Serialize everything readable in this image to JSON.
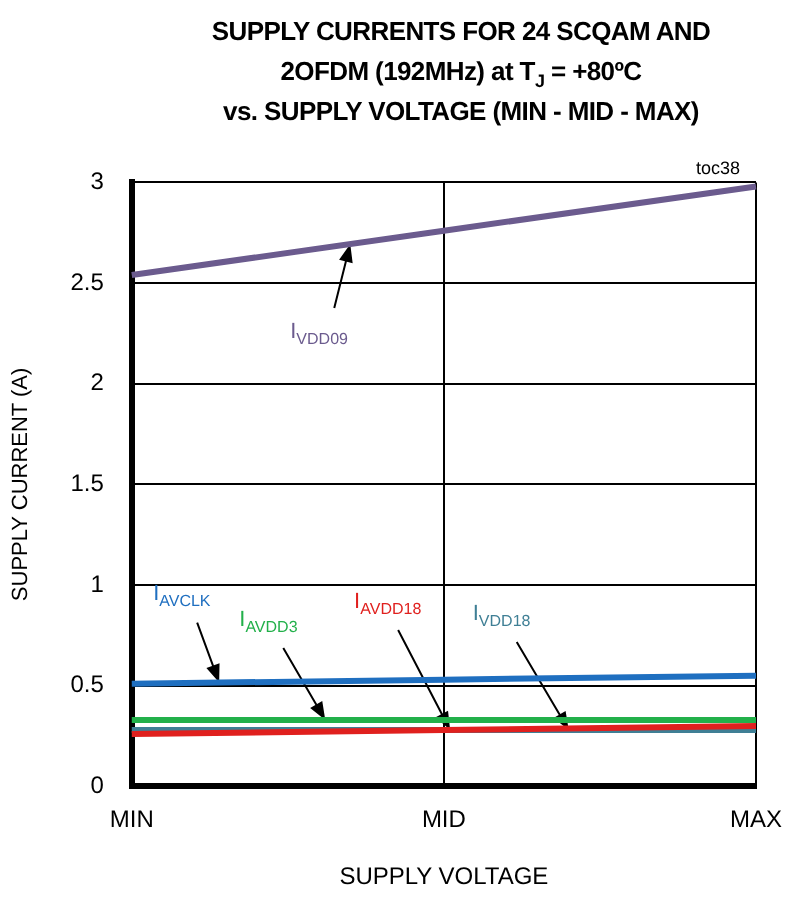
{
  "chart_data": {
    "type": "line",
    "title": "SUPPLY CURRENTS FOR 24 SCQAM AND\n2OFDM (192MHz) at T$_{J}$ = +80ºC\nvs. SUPPLY VOLTAGE (MIN - MID - MAX)",
    "xlabel": "SUPPLY VOLTAGE",
    "ylabel": "SUPPLY CURRENT (A)",
    "categories": [
      "MIN",
      "MID",
      "MAX"
    ],
    "ylim": [
      0,
      3
    ],
    "yticks": [
      0,
      0.5,
      1,
      1.5,
      2,
      2.5,
      3
    ],
    "grid": true,
    "legend": false,
    "marker": "none",
    "annotations": [
      "toc38"
    ],
    "series": [
      {
        "name": "I$_{VDD09}$",
        "color": "#6b5b8e",
        "values": [
          2.54,
          2.76,
          2.98
        ]
      },
      {
        "name": "I$_{AVCLK}$",
        "color": "#1f6fc0",
        "values": [
          0.51,
          0.53,
          0.55
        ]
      },
      {
        "name": "I$_{AVDD3}$",
        "color": "#22b04a",
        "values": [
          0.33,
          0.33,
          0.33
        ]
      },
      {
        "name": "I$_{AVDD18}$",
        "color": "#e0201e",
        "values": [
          0.26,
          0.28,
          0.3
        ]
      },
      {
        "name": "I$_{VDD18}$",
        "color": "#3f7f95",
        "values": [
          0.28,
          0.28,
          0.28
        ]
      }
    ]
  }
}
